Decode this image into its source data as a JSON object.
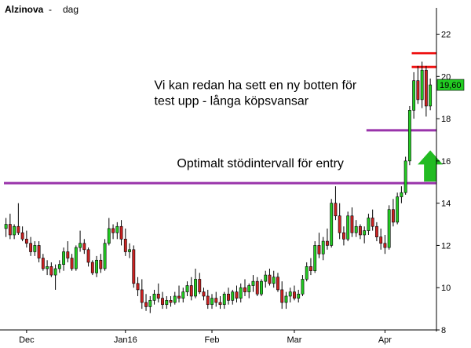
{
  "header": {
    "symbol": "Alzinova",
    "separator": "-",
    "period": "dag"
  },
  "chart_data": {
    "type": "candlestick",
    "title": "Alzinova - dag",
    "xlabel": "",
    "ylabel": "",
    "ylim": [
      8,
      22.8
    ],
    "y_ticks": [
      8,
      10,
      12,
      14,
      16,
      18,
      20,
      22
    ],
    "y_axis_position": "right",
    "grid": false,
    "x_tick_labels": [
      {
        "label": "Dec",
        "index": 5
      },
      {
        "label": "Jan16",
        "index": 29
      },
      {
        "label": "Feb",
        "index": 50
      },
      {
        "label": "Mar",
        "index": 70
      },
      {
        "label": "Apr",
        "index": 92
      }
    ],
    "last_value": {
      "label": "19,60",
      "value": 19.6,
      "color": "#22cc22"
    },
    "up_color": "#22cc22",
    "down_color": "#cc2222",
    "candles": [
      [
        12.8,
        13.3,
        12.4,
        13.0
      ],
      [
        13.0,
        13.5,
        12.3,
        12.5
      ],
      [
        12.5,
        13.0,
        12.3,
        12.9
      ],
      [
        12.9,
        14.0,
        12.5,
        12.6
      ],
      [
        12.6,
        12.9,
        12.2,
        12.3
      ],
      [
        12.3,
        12.7,
        11.9,
        12.1
      ],
      [
        12.1,
        12.4,
        11.5,
        11.7
      ],
      [
        11.7,
        12.2,
        11.5,
        12.0
      ],
      [
        12.0,
        12.2,
        11.2,
        11.4
      ],
      [
        11.4,
        11.6,
        10.8,
        10.9
      ],
      [
        10.9,
        11.3,
        10.6,
        11.0
      ],
      [
        11.0,
        11.2,
        10.5,
        10.6
      ],
      [
        10.6,
        11.1,
        9.9,
        10.9
      ],
      [
        10.9,
        11.3,
        10.7,
        11.1
      ],
      [
        11.1,
        11.9,
        10.8,
        11.7
      ],
      [
        11.7,
        12.2,
        11.2,
        11.4
      ],
      [
        11.4,
        11.6,
        10.8,
        10.9
      ],
      [
        10.9,
        12.0,
        10.8,
        11.9
      ],
      [
        11.9,
        12.7,
        11.7,
        12.1
      ],
      [
        12.1,
        12.3,
        11.6,
        11.8
      ],
      [
        11.8,
        11.9,
        11.0,
        11.2
      ],
      [
        11.2,
        11.3,
        10.6,
        10.7
      ],
      [
        10.7,
        11.5,
        10.5,
        11.3
      ],
      [
        11.3,
        11.6,
        10.7,
        10.9
      ],
      [
        10.9,
        12.3,
        10.8,
        12.1
      ],
      [
        12.1,
        13.3,
        12.0,
        12.8
      ],
      [
        12.8,
        13.0,
        12.3,
        12.6
      ],
      [
        12.6,
        13.1,
        12.3,
        12.9
      ],
      [
        12.9,
        13.2,
        12.0,
        12.3
      ],
      [
        12.3,
        12.8,
        11.5,
        11.7
      ],
      [
        11.7,
        12.1,
        11.4,
        11.8
      ],
      [
        11.8,
        12.0,
        10.0,
        10.2
      ],
      [
        10.2,
        10.5,
        9.6,
        9.9
      ],
      [
        9.9,
        10.4,
        9.0,
        9.3
      ],
      [
        9.3,
        9.7,
        8.9,
        9.1
      ],
      [
        9.1,
        9.6,
        8.8,
        9.4
      ],
      [
        9.4,
        9.9,
        9.2,
        9.7
      ],
      [
        9.7,
        10.2,
        9.3,
        9.5
      ],
      [
        9.5,
        9.8,
        9.0,
        9.2
      ],
      [
        9.2,
        9.6,
        9.0,
        9.4
      ],
      [
        9.4,
        9.6,
        9.1,
        9.3
      ],
      [
        9.3,
        9.8,
        9.2,
        9.6
      ],
      [
        9.6,
        10.1,
        9.3,
        9.5
      ],
      [
        9.5,
        10.0,
        9.3,
        9.8
      ],
      [
        9.8,
        10.3,
        9.6,
        10.1
      ],
      [
        10.1,
        10.5,
        9.4,
        9.6
      ],
      [
        9.6,
        10.9,
        9.5,
        10.4
      ],
      [
        10.4,
        10.7,
        9.7,
        9.8
      ],
      [
        9.8,
        10.0,
        9.4,
        9.6
      ],
      [
        9.6,
        9.9,
        9.0,
        9.2
      ],
      [
        9.2,
        9.7,
        9.0,
        9.5
      ],
      [
        9.5,
        9.8,
        9.1,
        9.3
      ],
      [
        9.3,
        9.6,
        9.0,
        9.2
      ],
      [
        9.2,
        9.8,
        9.0,
        9.7
      ],
      [
        9.7,
        10.0,
        9.2,
        9.4
      ],
      [
        9.4,
        9.9,
        9.2,
        9.8
      ],
      [
        9.8,
        10.1,
        9.3,
        9.5
      ],
      [
        9.5,
        10.2,
        9.3,
        10.0
      ],
      [
        10.0,
        10.4,
        9.6,
        9.8
      ],
      [
        9.8,
        10.2,
        9.5,
        10.1
      ],
      [
        10.1,
        10.6,
        9.8,
        10.3
      ],
      [
        10.3,
        10.5,
        9.6,
        9.7
      ],
      [
        9.7,
        10.4,
        9.6,
        10.3
      ],
      [
        10.3,
        10.8,
        10.0,
        10.6
      ],
      [
        10.6,
        10.9,
        10.1,
        10.2
      ],
      [
        10.2,
        10.8,
        10.0,
        10.5
      ],
      [
        10.5,
        10.7,
        9.8,
        9.9
      ],
      [
        9.9,
        10.3,
        9.0,
        9.3
      ],
      [
        9.3,
        9.8,
        9.0,
        9.6
      ],
      [
        9.6,
        10.0,
        9.3,
        9.8
      ],
      [
        9.8,
        10.1,
        9.4,
        9.5
      ],
      [
        9.5,
        9.9,
        9.3,
        9.7
      ],
      [
        9.7,
        10.6,
        9.6,
        10.4
      ],
      [
        10.4,
        11.2,
        10.3,
        11.0
      ],
      [
        11.0,
        11.4,
        10.6,
        10.8
      ],
      [
        10.8,
        12.2,
        10.7,
        12.0
      ],
      [
        12.0,
        12.6,
        11.4,
        11.6
      ],
      [
        11.6,
        12.4,
        11.3,
        12.2
      ],
      [
        12.2,
        12.8,
        11.8,
        12.0
      ],
      [
        12.0,
        14.2,
        11.9,
        14.0
      ],
      [
        14.0,
        14.8,
        13.2,
        13.4
      ],
      [
        13.4,
        14.0,
        12.3,
        12.6
      ],
      [
        12.6,
        12.9,
        12.0,
        12.3
      ],
      [
        12.3,
        13.6,
        12.2,
        13.4
      ],
      [
        13.4,
        13.8,
        12.4,
        12.6
      ],
      [
        12.6,
        13.2,
        12.4,
        12.9
      ],
      [
        12.9,
        13.0,
        12.3,
        12.5
      ],
      [
        12.5,
        12.9,
        12.1,
        12.7
      ],
      [
        12.7,
        13.5,
        12.5,
        13.3
      ],
      [
        13.3,
        13.7,
        12.7,
        12.9
      ],
      [
        12.9,
        13.1,
        12.2,
        12.4
      ],
      [
        12.4,
        12.8,
        11.8,
        12.1
      ],
      [
        12.1,
        12.5,
        11.6,
        11.9
      ],
      [
        11.9,
        13.9,
        11.8,
        13.7
      ],
      [
        13.7,
        14.2,
        12.9,
        13.1
      ],
      [
        13.1,
        14.5,
        13.0,
        14.3
      ],
      [
        14.3,
        14.8,
        14.0,
        14.5
      ],
      [
        14.5,
        16.2,
        14.4,
        16.0
      ],
      [
        16.0,
        18.6,
        15.8,
        18.4
      ],
      [
        18.4,
        20.2,
        18.0,
        19.8
      ],
      [
        19.8,
        20.5,
        18.7,
        18.9
      ],
      [
        18.9,
        20.7,
        18.5,
        20.3
      ],
      [
        20.3,
        20.5,
        18.1,
        18.6
      ],
      [
        18.6,
        19.9,
        18.4,
        19.6
      ]
    ],
    "annotations": [
      {
        "text": "Vi kan redan ha sett en ny botten för",
        "anchor_index": 36,
        "anchor_value": 19.4
      },
      {
        "text": "test upp - långa köpsvansar",
        "anchor_index": 36,
        "anchor_value": 18.65
      },
      {
        "text": "Optimalt stödintervall för entry",
        "anchor_index": 41.5,
        "anchor_value": 15.7
      }
    ],
    "horizontal_lines": [
      {
        "value": 21.1,
        "color": "#ee1111",
        "start_index": 99,
        "end_index": 107
      },
      {
        "value": 20.45,
        "color": "#ee1111",
        "start_index": 99,
        "end_index": 107
      },
      {
        "value": 17.45,
        "color": "#9933aa",
        "start_index": 88,
        "end_index": 107
      },
      {
        "value": 14.95,
        "color": "#9933aa",
        "start_index": -1,
        "end_index": 107
      }
    ],
    "arrow": {
      "direction": "up",
      "color": "#22bb22",
      "index": 103,
      "base_value": 14.95,
      "tip_value": 16.5
    }
  }
}
